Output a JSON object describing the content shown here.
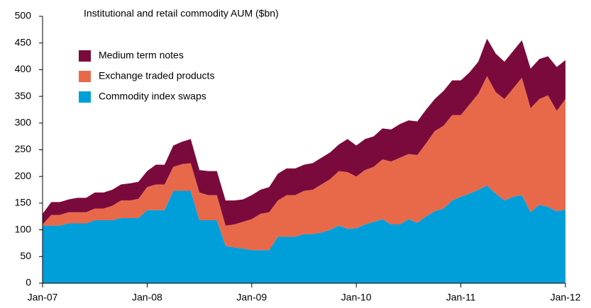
{
  "chart_data": {
    "type": "area",
    "stacked": true,
    "title": "Institutional and retail commodity AUM ($bn)",
    "categories": [
      "Jan-07",
      null,
      null,
      null,
      null,
      null,
      null,
      null,
      null,
      null,
      null,
      null,
      "Jan-08",
      null,
      null,
      null,
      null,
      null,
      null,
      null,
      null,
      null,
      null,
      null,
      "Jan-09",
      null,
      null,
      null,
      null,
      null,
      null,
      null,
      null,
      null,
      null,
      null,
      "Jan-10",
      null,
      null,
      null,
      null,
      null,
      null,
      null,
      null,
      null,
      null,
      null,
      "Jan-11",
      null,
      null,
      null,
      null,
      null,
      null,
      null,
      null,
      null,
      null,
      null,
      "Jan-12"
    ],
    "series": [
      {
        "name": "Commodity index swaps",
        "color": "#009fda",
        "values": [
          108,
          108,
          108,
          112,
          112,
          112,
          118,
          118,
          118,
          122,
          122,
          122,
          137,
          137,
          137,
          173,
          173,
          173,
          118,
          118,
          118,
          70,
          67,
          65,
          62,
          62,
          62,
          87,
          87,
          87,
          92,
          92,
          95,
          100,
          108,
          102,
          103,
          110,
          115,
          120,
          110,
          110,
          120,
          113,
          125,
          135,
          140,
          155,
          162,
          168,
          175,
          183,
          168,
          155,
          162,
          165,
          133,
          147,
          143,
          135,
          138
        ]
      },
      {
        "name": "Exchange traded products",
        "color": "#e8694a",
        "values": [
          2,
          20,
          20,
          21,
          21,
          21,
          22,
          22,
          27,
          33,
          33,
          36,
          43,
          48,
          48,
          45,
          50,
          52,
          52,
          47,
          47,
          38,
          43,
          50,
          58,
          68,
          71,
          68,
          78,
          78,
          81,
          83,
          90,
          95,
          102,
          106,
          97,
          102,
          103,
          112,
          118,
          125,
          122,
          127,
          137,
          150,
          155,
          160,
          153,
          167,
          180,
          205,
          190,
          190,
          203,
          220,
          195,
          198,
          209,
          188,
          207
        ]
      },
      {
        "name": "Medium term notes",
        "color": "#7b0a3c",
        "values": [
          20,
          24,
          24,
          24,
          27,
          27,
          30,
          30,
          30,
          30,
          32,
          32,
          30,
          37,
          37,
          40,
          42,
          45,
          42,
          45,
          45,
          47,
          45,
          42,
          45,
          45,
          47,
          50,
          50,
          50,
          49,
          50,
          50,
          50,
          50,
          62,
          58,
          58,
          57,
          58,
          60,
          63,
          63,
          63,
          63,
          60,
          65,
          65,
          65,
          60,
          60,
          70,
          72,
          70,
          70,
          70,
          74,
          75,
          73,
          82,
          73
        ]
      }
    ],
    "ylim": [
      0,
      500
    ],
    "yticks": [
      0,
      50,
      100,
      150,
      200,
      250,
      300,
      350,
      400,
      450,
      500
    ],
    "legend": "top-left"
  }
}
